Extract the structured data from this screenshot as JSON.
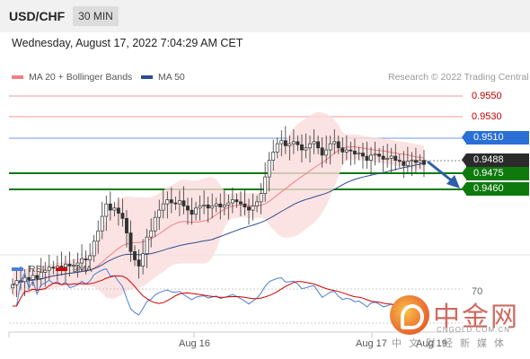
{
  "header": {
    "symbol": "USD/CHF",
    "timeframe": "30 MIN",
    "datetime": "Wednesday, August 17, 2022 7:04:29 AM CET"
  },
  "legend": {
    "ma20": "MA 20 + Bollinger Bands",
    "ma50": "MA 50",
    "credit": "Research © 2022 Trading Central",
    "ma20_color": "#f08080",
    "ma50_color": "#2c4d8f"
  },
  "levels": {
    "r1": "0.9550",
    "r2": "0.9530",
    "r3": "0.9510",
    "last": "0.9488",
    "s1": "0.9475",
    "s2": "0.9460"
  },
  "rsi_legend": {
    "rsi": "RSI",
    "ma": "9MA",
    "level70": "70"
  },
  "x_axis": {
    "aug16": "Aug 16",
    "aug17": "Aug 17",
    "aug19": "Aug 19"
  },
  "watermark": {
    "cn": "中金网",
    "url": "CNGOLD.COM.CN",
    "sub": "中文财经新媒体"
  },
  "chart_data": {
    "type": "candlestick",
    "price_axis_labels": [
      "0.9550",
      "0.9530",
      "0.9510",
      "0.9488",
      "0.9475",
      "0.9460"
    ],
    "close_series": [
      0.9368,
      0.9372,
      0.9371,
      0.9375,
      0.9373,
      0.9377,
      0.9374,
      0.938,
      0.9382,
      0.9385,
      0.9384,
      0.9386,
      0.9385,
      0.9388,
      0.9386,
      0.9387,
      0.9389,
      0.9393,
      0.9392,
      0.9396,
      0.941,
      0.942,
      0.9434,
      0.9446,
      0.944,
      0.9442,
      0.9437,
      0.9432,
      0.9418,
      0.94,
      0.9392,
      0.9386,
      0.9398,
      0.9414,
      0.942,
      0.9433,
      0.944,
      0.9446,
      0.945,
      0.9447,
      0.9446,
      0.9449,
      0.9444,
      0.944,
      0.9436,
      0.9442,
      0.9444,
      0.9445,
      0.9442,
      0.9444,
      0.9446,
      0.9443,
      0.9445,
      0.9447,
      0.945,
      0.9448,
      0.9446,
      0.9443,
      0.944,
      0.9444,
      0.9448,
      0.9456,
      0.9472,
      0.9488,
      0.9496,
      0.9504,
      0.9507,
      0.9502,
      0.9504,
      0.9506,
      0.9503,
      0.9498,
      0.95,
      0.9504,
      0.9506,
      0.95,
      0.9493,
      0.9498,
      0.9504,
      0.9506,
      0.95,
      0.9496,
      0.9498,
      0.9497,
      0.9494,
      0.9495,
      0.9492,
      0.9488,
      0.9493,
      0.9494,
      0.9492,
      0.9489,
      0.949,
      0.9492,
      0.9488,
      0.9487,
      0.9483,
      0.9487,
      0.9488,
      0.9486,
      0.9488,
      0.9484
    ],
    "rsi_level": 70
  }
}
